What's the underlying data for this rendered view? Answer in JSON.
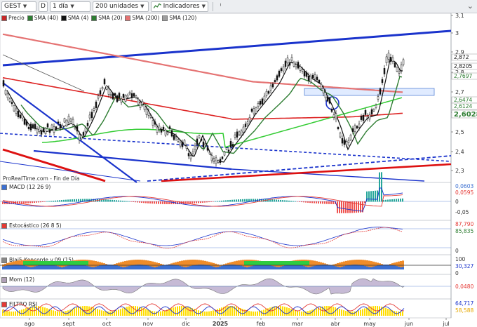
{
  "toolbar": {
    "ticker": "GEST",
    "period_icon": "D",
    "period": "1 día",
    "units": "200 unidades",
    "indicators_label": "Indicadores"
  },
  "legend": {
    "items": [
      {
        "label": "Precio",
        "color": "#c62828"
      },
      {
        "label": "SMA (40)",
        "color": "#2e7d32"
      },
      {
        "label": "SMA (4)",
        "color": "#111111"
      },
      {
        "label": "SMA (20)",
        "color": "#2e7d32"
      },
      {
        "label": "SMA (200)",
        "color": "#e57373"
      },
      {
        "label": "SMA (120)",
        "color": "#9e9e9e"
      }
    ]
  },
  "watermark": "ProRealTime.com - Fin de Día",
  "price_axis": {
    "ticks": [
      "3,1",
      "3",
      "2,9",
      "2,8",
      "2,7",
      "2,6",
      "2,5",
      "2,4",
      "2,3"
    ],
    "badges": [
      {
        "text": "2,872",
        "bg": "#ffffff",
        "fg": "#111111"
      },
      {
        "text": "2,8205",
        "bg": "#ffffff",
        "fg": "#111111"
      },
      {
        "text": "2,7697",
        "bg": "#ffffff",
        "fg": "#2e7d32"
      },
      {
        "text": "2,6474",
        "bg": "#ffffff",
        "fg": "#2e7d32"
      },
      {
        "text": "2,6124",
        "bg": "#ffffff",
        "fg": "#2e7d32"
      },
      {
        "text": "2,6028",
        "bg": "#ffffff",
        "fg": "#2e7d32"
      }
    ]
  },
  "panes": {
    "macd": {
      "label": "MACD (12 26 9)",
      "ticks": [
        "0,0603",
        "0,0595",
        "0",
        "-0,05"
      ]
    },
    "stoch": {
      "label": "Estocástico (26 8 5)",
      "ticks": [
        "87,790",
        "85,835",
        "0"
      ]
    },
    "koncorde": {
      "label": "Blai5 Koncorde v.09 (15)",
      "ticks": [
        "100",
        "30,327",
        "0"
      ]
    },
    "mom": {
      "label": "Mom (12)",
      "ticks": [
        "0,0480"
      ]
    },
    "filtro": {
      "label": "FILTRO RSI",
      "ticks": [
        "64,717",
        "58,588"
      ]
    }
  },
  "x_axis": {
    "months": [
      "ago",
      "sept",
      "oct",
      "nov",
      "dic",
      "2025",
      "feb",
      "mar",
      "abr",
      "may",
      "jun",
      "jul"
    ]
  },
  "colors": {
    "trend_blue": "#1a33cc",
    "trend_red": "#dd1111",
    "sma200": "#e57373",
    "sma120": "#dd2222",
    "sma40": "#2e7d32",
    "sma20": "#33cc33",
    "sma4": "#111111"
  }
}
